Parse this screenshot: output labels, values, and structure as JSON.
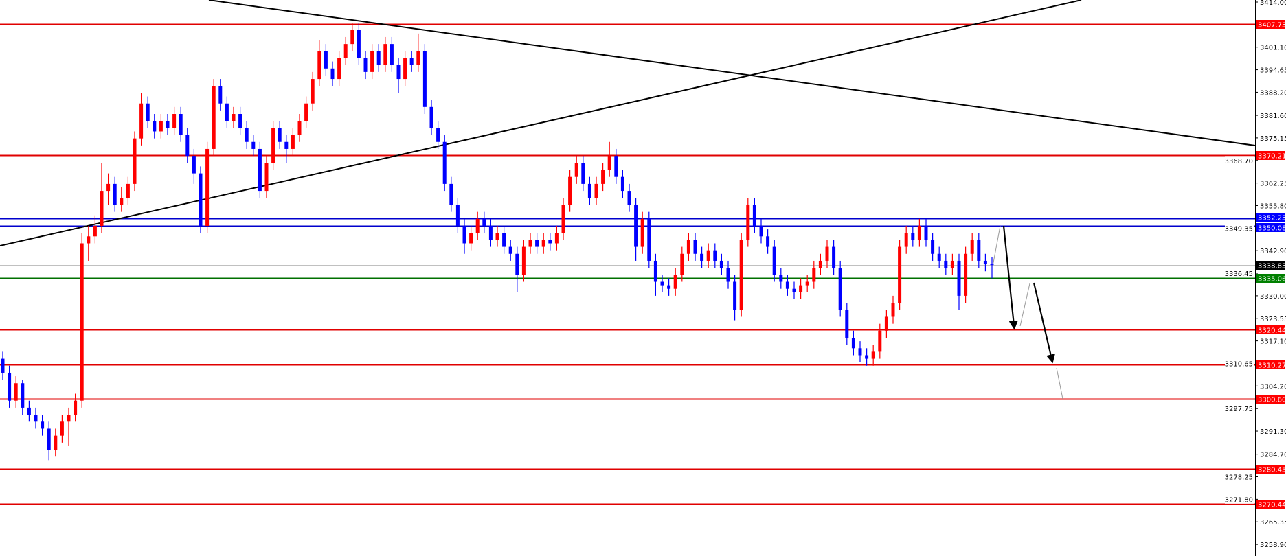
{
  "chart_data": {
    "type": "candlestick",
    "title": "",
    "xlabel": "",
    "ylabel": "",
    "ylim": [
      3258.9,
      3414.0
    ],
    "grid": false,
    "colors": {
      "up": "#ff0000",
      "down": "#0000ff",
      "background": "#ffffff",
      "axis": "#000000"
    },
    "y_ticks": [
      "3414.00",
      "3401.10",
      "3394.65",
      "3388.20",
      "3381.60",
      "3375.15",
      "3368.70",
      "3362.25",
      "3355.80",
      "3349.35",
      "3342.90",
      "3336.45",
      "3330.00",
      "3323.55",
      "3317.10",
      "3310.65",
      "3304.20",
      "3297.75",
      "3291.30",
      "3284.70",
      "3278.25",
      "3271.80",
      "3265.35",
      "3258.90"
    ],
    "levels": [
      {
        "price": "3407.73",
        "color": "#e00000",
        "label_bg": "#ff0000"
      },
      {
        "price": "3370.21",
        "color": "#e00000",
        "label_bg": "#ff0000"
      },
      {
        "price": "3352.23",
        "color": "#0000cc",
        "label_bg": "#0000ff"
      },
      {
        "price": "3350.08",
        "color": "#0000cc",
        "label_bg": "#0000ff"
      },
      {
        "price": "3338.83",
        "color": "#c0c0c0",
        "label_bg": "#000000"
      },
      {
        "price": "3335.06",
        "color": "#007000",
        "label_bg": "#008000"
      },
      {
        "price": "3320.44",
        "color": "#e00000",
        "label_bg": "#ff0000"
      },
      {
        "price": "3310.27",
        "color": "#e00000",
        "label_bg": "#ff0000"
      },
      {
        "price": "3300.60",
        "color": "#e00000",
        "label_bg": "#ff0000"
      },
      {
        "price": "3280.45",
        "color": "#e00000",
        "label_bg": "#ff0000"
      },
      {
        "price": "3270.44",
        "color": "#e00000",
        "label_bg": "#ff0000"
      }
    ],
    "ohlc": [
      [
        3312,
        3314,
        3306,
        3308
      ],
      [
        3308,
        3310,
        3298,
        3300
      ],
      [
        3300,
        3307,
        3298,
        3305
      ],
      [
        3305,
        3306,
        3296,
        3298
      ],
      [
        3298,
        3300,
        3294,
        3296
      ],
      [
        3296,
        3298,
        3292,
        3294
      ],
      [
        3294,
        3296,
        3290,
        3292
      ],
      [
        3292,
        3294,
        3283,
        3286
      ],
      [
        3286,
        3292,
        3284,
        3290
      ],
      [
        3290,
        3296,
        3288,
        3294
      ],
      [
        3294,
        3298,
        3287,
        3296
      ],
      [
        3296,
        3302,
        3294,
        3300
      ],
      [
        3300,
        3348,
        3298,
        3345
      ],
      [
        3345,
        3350,
        3340,
        3347
      ],
      [
        3347,
        3353,
        3345,
        3350
      ],
      [
        3350,
        3368,
        3348,
        3360
      ],
      [
        3360,
        3365,
        3356,
        3362
      ],
      [
        3362,
        3364,
        3354,
        3356
      ],
      [
        3356,
        3361,
        3354,
        3358
      ],
      [
        3358,
        3364,
        3356,
        3362
      ],
      [
        3362,
        3377,
        3360,
        3375
      ],
      [
        3375,
        3388,
        3373,
        3385
      ],
      [
        3385,
        3387,
        3378,
        3380
      ],
      [
        3380,
        3382,
        3375,
        3377
      ],
      [
        3377,
        3382,
        3375,
        3380
      ],
      [
        3380,
        3382,
        3376,
        3378
      ],
      [
        3378,
        3384,
        3376,
        3382
      ],
      [
        3382,
        3384,
        3374,
        3376
      ],
      [
        3376,
        3378,
        3368,
        3370
      ],
      [
        3370,
        3372,
        3362,
        3365
      ],
      [
        3365,
        3367,
        3348,
        3350
      ],
      [
        3350,
        3374,
        3348,
        3372
      ],
      [
        3372,
        3392,
        3370,
        3390
      ],
      [
        3390,
        3392,
        3383,
        3385
      ],
      [
        3385,
        3387,
        3378,
        3380
      ],
      [
        3380,
        3384,
        3378,
        3382
      ],
      [
        3382,
        3384,
        3376,
        3378
      ],
      [
        3378,
        3380,
        3372,
        3374
      ],
      [
        3374,
        3376,
        3370,
        3372
      ],
      [
        3372,
        3374,
        3358,
        3360
      ],
      [
        3360,
        3370,
        3358,
        3368
      ],
      [
        3368,
        3380,
        3366,
        3378
      ],
      [
        3378,
        3380,
        3372,
        3374
      ],
      [
        3374,
        3376,
        3368,
        3372
      ],
      [
        3372,
        3378,
        3370,
        3376
      ],
      [
        3376,
        3382,
        3374,
        3380
      ],
      [
        3380,
        3387,
        3378,
        3385
      ],
      [
        3385,
        3394,
        3383,
        3392
      ],
      [
        3392,
        3403,
        3390,
        3400
      ],
      [
        3400,
        3402,
        3393,
        3395
      ],
      [
        3395,
        3397,
        3390,
        3392
      ],
      [
        3392,
        3400,
        3390,
        3398
      ],
      [
        3398,
        3404,
        3396,
        3402
      ],
      [
        3402,
        3408,
        3400,
        3406
      ],
      [
        3406,
        3408,
        3396,
        3398
      ],
      [
        3398,
        3400,
        3392,
        3394
      ],
      [
        3394,
        3402,
        3392,
        3400
      ],
      [
        3400,
        3402,
        3394,
        3396
      ],
      [
        3396,
        3404,
        3394,
        3402
      ],
      [
        3402,
        3404,
        3394,
        3396
      ],
      [
        3396,
        3398,
        3388,
        3392
      ],
      [
        3392,
        3400,
        3390,
        3398
      ],
      [
        3398,
        3400,
        3394,
        3396
      ],
      [
        3396,
        3405,
        3394,
        3400
      ],
      [
        3400,
        3402,
        3382,
        3384
      ],
      [
        3384,
        3386,
        3376,
        3378
      ],
      [
        3378,
        3380,
        3372,
        3374
      ],
      [
        3374,
        3376,
        3360,
        3362
      ],
      [
        3362,
        3364,
        3354,
        3356
      ],
      [
        3356,
        3358,
        3348,
        3350
      ],
      [
        3350,
        3352,
        3342,
        3345
      ],
      [
        3345,
        3350,
        3343,
        3348
      ],
      [
        3348,
        3354,
        3346,
        3352
      ],
      [
        3352,
        3354,
        3348,
        3350
      ],
      [
        3350,
        3352,
        3344,
        3346
      ],
      [
        3346,
        3350,
        3344,
        3348
      ],
      [
        3348,
        3350,
        3342,
        3344
      ],
      [
        3344,
        3346,
        3340,
        3342
      ],
      [
        3342,
        3344,
        3331,
        3336
      ],
      [
        3336,
        3346,
        3334,
        3344
      ],
      [
        3344,
        3348,
        3342,
        3346
      ],
      [
        3346,
        3348,
        3342,
        3344
      ],
      [
        3344,
        3348,
        3342,
        3346
      ],
      [
        3346,
        3348,
        3343,
        3345
      ],
      [
        3345,
        3350,
        3343,
        3348
      ],
      [
        3348,
        3358,
        3346,
        3356
      ],
      [
        3356,
        3366,
        3354,
        3364
      ],
      [
        3364,
        3370,
        3362,
        3368
      ],
      [
        3368,
        3370,
        3360,
        3362
      ],
      [
        3362,
        3364,
        3356,
        3358
      ],
      [
        3358,
        3364,
        3356,
        3362
      ],
      [
        3362,
        3368,
        3360,
        3366
      ],
      [
        3366,
        3374,
        3364,
        3370
      ],
      [
        3370,
        3372,
        3362,
        3364
      ],
      [
        3364,
        3366,
        3358,
        3360
      ],
      [
        3360,
        3362,
        3354,
        3356
      ],
      [
        3356,
        3358,
        3340,
        3344
      ],
      [
        3344,
        3354,
        3342,
        3352
      ],
      [
        3352,
        3354,
        3338,
        3340
      ],
      [
        3340,
        3342,
        3330,
        3334
      ],
      [
        3334,
        3336,
        3331,
        3333
      ],
      [
        3333,
        3335,
        3330,
        3332
      ],
      [
        3332,
        3338,
        3330,
        3336
      ],
      [
        3336,
        3344,
        3334,
        3342
      ],
      [
        3342,
        3348,
        3340,
        3346
      ],
      [
        3346,
        3348,
        3340,
        3342
      ],
      [
        3342,
        3344,
        3338,
        3340
      ],
      [
        3340,
        3345,
        3338,
        3343
      ],
      [
        3343,
        3345,
        3338,
        3340
      ],
      [
        3340,
        3342,
        3336,
        3338
      ],
      [
        3338,
        3340,
        3332,
        3334
      ],
      [
        3334,
        3336,
        3323,
        3326
      ],
      [
        3326,
        3348,
        3324,
        3346
      ],
      [
        3346,
        3358,
        3344,
        3356
      ],
      [
        3356,
        3358,
        3348,
        3350
      ],
      [
        3350,
        3352,
        3345,
        3347
      ],
      [
        3347,
        3349,
        3342,
        3344
      ],
      [
        3344,
        3346,
        3334,
        3336
      ],
      [
        3336,
        3338,
        3332,
        3334
      ],
      [
        3334,
        3336,
        3330,
        3332
      ],
      [
        3332,
        3334,
        3329,
        3331
      ],
      [
        3331,
        3335,
        3329,
        3333
      ],
      [
        3333,
        3336,
        3331,
        3334
      ],
      [
        3334,
        3340,
        3332,
        3338
      ],
      [
        3338,
        3342,
        3336,
        3340
      ],
      [
        3340,
        3346,
        3338,
        3344
      ],
      [
        3344,
        3346,
        3336,
        3338
      ],
      [
        3338,
        3340,
        3324,
        3326
      ],
      [
        3326,
        3328,
        3316,
        3318
      ],
      [
        3318,
        3320,
        3313,
        3315
      ],
      [
        3315,
        3317,
        3311,
        3313
      ],
      [
        3313,
        3315,
        3310,
        3312
      ],
      [
        3312,
        3316,
        3310,
        3314
      ],
      [
        3314,
        3322,
        3312,
        3320
      ],
      [
        3320,
        3326,
        3318,
        3324
      ],
      [
        3324,
        3330,
        3322,
        3328
      ],
      [
        3328,
        3346,
        3326,
        3344
      ],
      [
        3344,
        3350,
        3342,
        3348
      ],
      [
        3348,
        3350,
        3344,
        3346
      ],
      [
        3346,
        3352,
        3344,
        3350
      ],
      [
        3350,
        3352,
        3344,
        3346
      ],
      [
        3346,
        3348,
        3340,
        3342
      ],
      [
        3342,
        3344,
        3338,
        3340
      ],
      [
        3340,
        3342,
        3336,
        3338
      ],
      [
        3338,
        3342,
        3336,
        3340
      ],
      [
        3340,
        3342,
        3326,
        3330
      ],
      [
        3330,
        3344,
        3328,
        3342
      ],
      [
        3342,
        3348,
        3340,
        3346
      ],
      [
        3346,
        3348,
        3338,
        3340
      ],
      [
        3340,
        3342,
        3337,
        3339
      ],
      [
        3339,
        3341,
        3335,
        3338.83
      ]
    ]
  }
}
